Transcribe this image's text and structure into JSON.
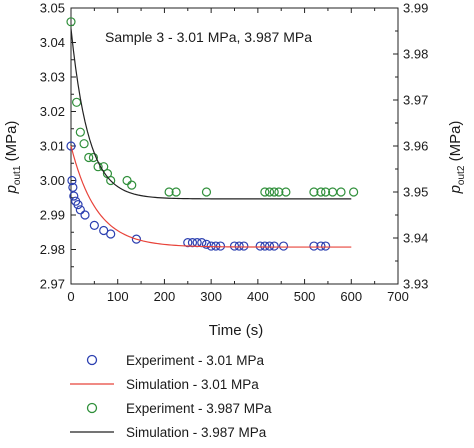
{
  "chart_data": {
    "type": "scatter",
    "annotation": "Sample 3 - 3.01 MPa, 3.987 MPa",
    "xlabel": "Time (s)",
    "ylabel_left": {
      "symbol": "p",
      "subscript": "out1",
      "unit": " (MPa)"
    },
    "ylabel_right": {
      "symbol": "p",
      "subscript": "out2",
      "unit": " (MPa)"
    },
    "xlim": [
      0,
      700
    ],
    "ylim_left": [
      2.97,
      3.05
    ],
    "ylim_right": [
      3.93,
      3.99
    ],
    "x_ticks": [
      "0",
      "100",
      "200",
      "300",
      "400",
      "500",
      "600",
      "700"
    ],
    "y_ticks_left": [
      "2.97",
      "2.98",
      "2.99",
      "3.00",
      "3.01",
      "3.02",
      "3.03",
      "3.04",
      "3.05"
    ],
    "y_ticks_right": [
      "3.93",
      "3.94",
      "3.95",
      "3.96",
      "3.97",
      "3.98",
      "3.99"
    ],
    "grid": false,
    "legend_position": "below",
    "series": [
      {
        "name": "Experiment - 3.01 MPa",
        "kind": "marker",
        "axis": "left",
        "color": "#2b3fb0",
        "points": [
          [
            0,
            3.01
          ],
          [
            2,
            3.0
          ],
          [
            4,
            2.998
          ],
          [
            6,
            2.9955
          ],
          [
            10,
            2.994
          ],
          [
            15,
            2.993
          ],
          [
            20,
            2.9915
          ],
          [
            30,
            2.99
          ],
          [
            50,
            2.987
          ],
          [
            70,
            2.9855
          ],
          [
            85,
            2.9845
          ],
          [
            140,
            2.983
          ],
          [
            250,
            2.982
          ],
          [
            260,
            2.982
          ],
          [
            270,
            2.982
          ],
          [
            280,
            2.982
          ],
          [
            290,
            2.9815
          ],
          [
            300,
            2.981
          ],
          [
            310,
            2.981
          ],
          [
            320,
            2.981
          ],
          [
            350,
            2.981
          ],
          [
            360,
            2.981
          ],
          [
            370,
            2.981
          ],
          [
            405,
            2.981
          ],
          [
            415,
            2.981
          ],
          [
            425,
            2.981
          ],
          [
            435,
            2.981
          ],
          [
            455,
            2.981
          ],
          [
            520,
            2.981
          ],
          [
            535,
            2.981
          ],
          [
            545,
            2.981
          ]
        ]
      },
      {
        "name": "Simulation - 3.01 MPa",
        "kind": "line",
        "axis": "left",
        "color": "#e8433a",
        "model": {
          "x0": 0,
          "x1": 600,
          "start": 3.01,
          "end": 2.9807,
          "tau": 55
        }
      },
      {
        "name": "Experiment - 3.987 MPa",
        "kind": "marker",
        "axis": "right",
        "color": "#2f8f3a",
        "points": [
          [
            0,
            3.987
          ],
          [
            12,
            3.9695
          ],
          [
            20,
            3.963
          ],
          [
            28,
            3.9605
          ],
          [
            38,
            3.9575
          ],
          [
            48,
            3.9575
          ],
          [
            58,
            3.9555
          ],
          [
            70,
            3.9555
          ],
          [
            78,
            3.954
          ],
          [
            85,
            3.9525
          ],
          [
            120,
            3.9525
          ],
          [
            130,
            3.9515
          ],
          [
            210,
            3.95
          ],
          [
            225,
            3.95
          ],
          [
            290,
            3.95
          ],
          [
            415,
            3.95
          ],
          [
            425,
            3.95
          ],
          [
            435,
            3.95
          ],
          [
            445,
            3.95
          ],
          [
            460,
            3.95
          ],
          [
            520,
            3.95
          ],
          [
            535,
            3.95
          ],
          [
            545,
            3.95
          ],
          [
            560,
            3.95
          ],
          [
            578,
            3.95
          ],
          [
            605,
            3.95
          ]
        ]
      },
      {
        "name": "Simulation - 3.987 MPa",
        "kind": "line",
        "axis": "right",
        "color": "#222222",
        "model": {
          "x0": 0,
          "x1": 600,
          "start": 3.9855,
          "end": 3.9485,
          "tau": 38
        }
      }
    ]
  }
}
